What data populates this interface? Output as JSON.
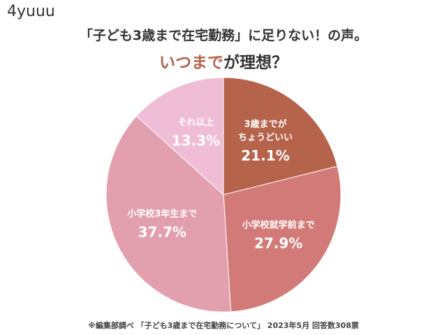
{
  "chart_data": {
    "type": "pie",
    "brand": "4yuuu",
    "title": "「子ども3歳まで在宅勤務」に足りない！の声。",
    "subtitle": [
      "いつまで",
      "が理想？"
    ],
    "categories": [
      "3歳までが\nちょうどいい",
      "小学校就学前まで",
      "小学校3年生まで",
      "それ以上"
    ],
    "values": [
      21.1,
      27.9,
      37.7,
      13.3
    ],
    "value_labels": [
      "21.1%",
      "27.9%",
      "37.7%",
      "13.3%"
    ],
    "colors": [
      "#b5634a",
      "#d27a78",
      "#e29fae",
      "#f0bdd6"
    ],
    "footnote": "※編集部調べ 「子ども3歳まで在宅勤務について」 2023年5月 回答数308票"
  }
}
